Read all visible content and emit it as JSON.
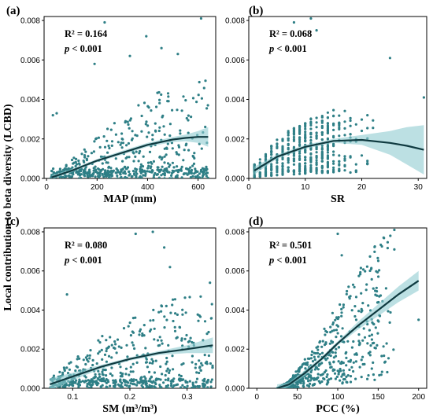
{
  "figure": {
    "ylabel": "Local contribution to beta diversity (LCBD)",
    "colors": {
      "point": "#2e7f86",
      "fit": "#0f3a40",
      "ci": "#8fcbd1"
    }
  },
  "chart_data": [
    {
      "type": "scatter",
      "panel": "(a)",
      "xlabel": "MAP (mm)",
      "ylabel": "",
      "xlim": [
        -10,
        670
      ],
      "ylim": [
        0,
        0.0082
      ],
      "xticks": [
        0,
        200,
        400,
        600
      ],
      "xtick_labels": [
        "0",
        "200",
        "400",
        "600"
      ],
      "yticks": [
        0,
        0.002,
        0.004,
        0.006,
        0.008
      ],
      "ytick_labels": [
        "0.000",
        "0.002",
        "0.004",
        "0.006",
        "0.008"
      ],
      "r2": "R² = 0.164",
      "p": "p < 0.001",
      "fit": {
        "x": [
          20,
          100,
          200,
          300,
          400,
          500,
          550,
          600,
          640
        ],
        "y": [
          5e-05,
          0.0004,
          0.0009,
          0.0013,
          0.0017,
          0.00197,
          0.00205,
          0.0021,
          0.0021
        ]
      },
      "ci_upper": [
        0.00015,
        0.00048,
        0.00098,
        0.0014,
        0.0018,
        0.0021,
        0.00222,
        0.0024,
        0.0026
      ],
      "ci_lower": [
        -5e-05,
        0.00032,
        0.00082,
        0.0012,
        0.0016,
        0.00184,
        0.00188,
        0.0018,
        0.0016
      ],
      "scatter_gen": {
        "xmin": 15,
        "xmax": 640,
        "n": 560,
        "model": "map"
      },
      "points": [
        {
          "x": 230,
          "y": 0.0079
        },
        {
          "x": 612,
          "y": 0.0081
        },
        {
          "x": 395,
          "y": 0.0072
        },
        {
          "x": 40,
          "y": 0.0033
        },
        {
          "x": 25,
          "y": 0.0032
        },
        {
          "x": 455,
          "y": 0.0066
        },
        {
          "x": 330,
          "y": 0.0062
        },
        {
          "x": 520,
          "y": 0.0063
        },
        {
          "x": 190,
          "y": 0.0058
        }
      ]
    },
    {
      "type": "scatter",
      "panel": "(b)",
      "xlabel": "SR",
      "ylabel": "",
      "xlim": [
        0,
        31.5
      ],
      "ylim": [
        0,
        0.0082
      ],
      "xticks": [
        0,
        10,
        20,
        30
      ],
      "xtick_labels": [
        "0",
        "10",
        "20",
        "30"
      ],
      "yticks": [
        0,
        0.002,
        0.004,
        0.006,
        0.008
      ],
      "ytick_labels": [
        "0.000",
        "0.002",
        "0.004",
        "0.006",
        "0.008"
      ],
      "r2": "R² = 0.068",
      "p": "p < 0.001",
      "fit": {
        "x": [
          1,
          5,
          10,
          15,
          20,
          25,
          28,
          31
        ],
        "y": [
          0.0004,
          0.0011,
          0.0016,
          0.0019,
          0.00195,
          0.0018,
          0.00165,
          0.00145
        ]
      },
      "ci_upper": [
        0.0006,
        0.0012,
        0.0017,
        0.002,
        0.0022,
        0.0024,
        0.0026,
        0.0027
      ],
      "ci_lower": [
        0.0002,
        0.001,
        0.0015,
        0.0018,
        0.0017,
        0.0012,
        0.0007,
        0.0002
      ],
      "scatter_gen": {
        "xmin": 1,
        "xmax": 30,
        "n": 520,
        "model": "sr"
      },
      "points": [
        {
          "x": 11,
          "y": 0.0081
        },
        {
          "x": 8,
          "y": 0.0079
        },
        {
          "x": 12,
          "y": 0.0075
        },
        {
          "x": 25,
          "y": 0.0061
        },
        {
          "x": 31,
          "y": 0.0041
        },
        {
          "x": 21,
          "y": 0.0032
        }
      ]
    },
    {
      "type": "scatter",
      "panel": "(c)",
      "xlabel": "SM (m³/m³)",
      "ylabel": "",
      "xlim": [
        0.05,
        0.35
      ],
      "ylim": [
        0,
        0.0082
      ],
      "xticks": [
        0.1,
        0.2,
        0.3
      ],
      "xtick_labels": [
        "0.1",
        "0.2",
        "0.3"
      ],
      "yticks": [
        0,
        0.002,
        0.004,
        0.006,
        0.008
      ],
      "ytick_labels": [
        "0.000",
        "0.002",
        "0.004",
        "0.006",
        "0.008"
      ],
      "r2": "R² = 0.080",
      "p": "p < 0.001",
      "fit": {
        "x": [
          0.06,
          0.1,
          0.15,
          0.2,
          0.25,
          0.3,
          0.345
        ],
        "y": [
          0.0002,
          0.0006,
          0.0011,
          0.0015,
          0.0018,
          0.002,
          0.0022
        ]
      },
      "ci_upper": [
        0.0005,
        0.0008,
        0.0012,
        0.00158,
        0.0019,
        0.0022,
        0.0026
      ],
      "ci_lower": [
        -0.0001,
        0.0004,
        0.001,
        0.00142,
        0.0017,
        0.0018,
        0.0018
      ],
      "scatter_gen": {
        "xmin": 0.06,
        "xmax": 0.345,
        "n": 560,
        "model": "sm"
      },
      "points": [
        {
          "x": 0.21,
          "y": 0.0079
        },
        {
          "x": 0.24,
          "y": 0.008
        },
        {
          "x": 0.26,
          "y": 0.0072
        },
        {
          "x": 0.27,
          "y": 0.0062
        },
        {
          "x": 0.34,
          "y": 0.0054
        },
        {
          "x": 0.09,
          "y": 0.0048
        }
      ]
    },
    {
      "type": "scatter",
      "panel": "(d)",
      "xlabel": "PCC (%)",
      "ylabel": "",
      "xlim": [
        -10,
        210
      ],
      "ylim": [
        0,
        0.0082
      ],
      "xticks": [
        0,
        50,
        100,
        150,
        200
      ],
      "xtick_labels": [
        "0",
        "50",
        "100",
        "150",
        "200"
      ],
      "yticks": [
        0,
        0.002,
        0.004,
        0.006,
        0.008
      ],
      "ytick_labels": [
        "0.000",
        "0.002",
        "0.004",
        "0.006",
        "0.008"
      ],
      "r2": "R² = 0.501",
      "p": "p < 0.001",
      "fit": {
        "x": [
          25,
          40,
          60,
          80,
          100,
          125,
          150,
          175,
          200
        ],
        "y": [
          0.0,
          0.0002,
          0.0008,
          0.0015,
          0.0023,
          0.0032,
          0.004,
          0.0048,
          0.0055
        ]
      },
      "ci_upper": [
        0.0002,
        0.0003,
        0.00095,
        0.0016,
        0.0024,
        0.0034,
        0.0043,
        0.0052,
        0.006
      ],
      "ci_lower": [
        -0.0002,
        0.0001,
        0.00065,
        0.0014,
        0.0022,
        0.003,
        0.0037,
        0.0044,
        0.005
      ],
      "scatter_gen": {
        "xmin": 25,
        "xmax": 200,
        "n": 560,
        "model": "pcc"
      },
      "points": [
        {
          "x": 100,
          "y": 0.0079
        },
        {
          "x": 170,
          "y": 0.0081
        },
        {
          "x": 165,
          "y": 0.0078
        },
        {
          "x": 170,
          "y": 0.0071
        },
        {
          "x": 105,
          "y": 0.0068
        },
        {
          "x": 200,
          "y": 0.0035
        }
      ]
    }
  ]
}
